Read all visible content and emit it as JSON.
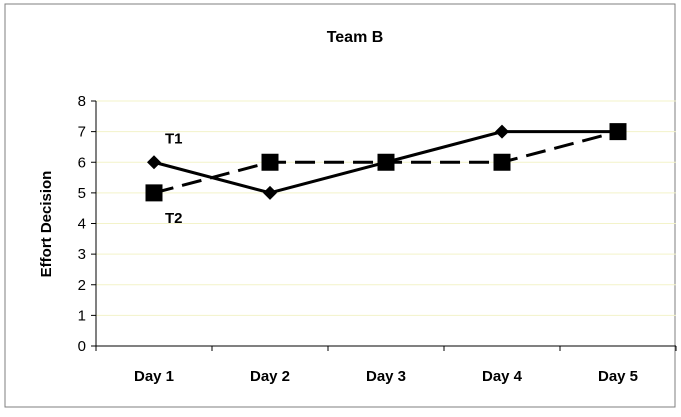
{
  "chart_data": {
    "type": "line",
    "title": "Team B",
    "xlabel": "",
    "ylabel": "Effort Decision",
    "categories": [
      "Day 1",
      "Day 2",
      "Day 3",
      "Day 4",
      "Day 5"
    ],
    "ylim": [
      0,
      8
    ],
    "yticks": [
      "0",
      "1",
      "2",
      "3",
      "4",
      "5",
      "6",
      "7",
      "8"
    ],
    "grid": true,
    "legend": "none",
    "series": [
      {
        "name": "T1",
        "values": [
          6,
          5,
          6,
          7,
          7
        ],
        "style": "solid",
        "marker": "diamond",
        "color": "#000000"
      },
      {
        "name": "T2",
        "values": [
          5,
          6,
          6,
          6,
          7
        ],
        "style": "dashed",
        "marker": "square",
        "color": "#000000"
      }
    ],
    "gridline_color": "#f3f3c9",
    "border_color": "#7f7f7f"
  }
}
